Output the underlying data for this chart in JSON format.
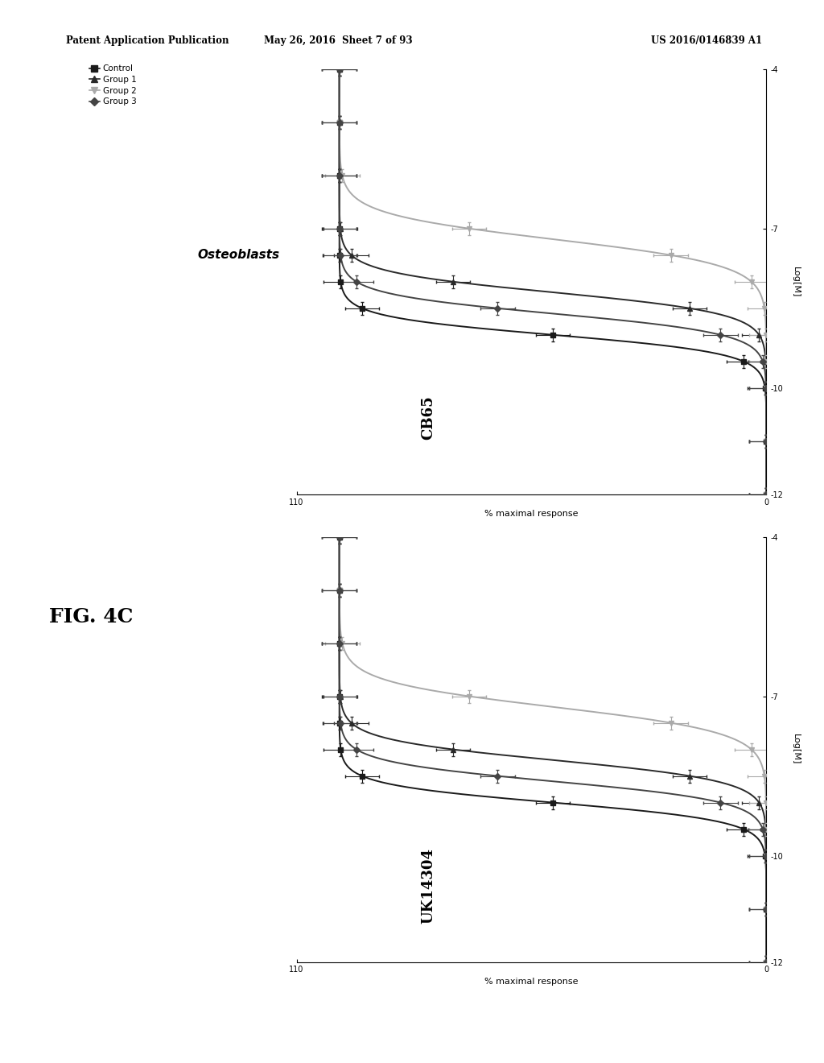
{
  "header_left": "Patent Application Publication",
  "header_center": "May 26, 2016  Sheet 7 of 93",
  "header_right": "US 2016/0146839 A1",
  "fig_label": "FIG. 4C",
  "cell_type": "Osteoblasts",
  "plot1_title": "CB65",
  "plot2_title": "UK14304",
  "xaxis_label": "Log[M]",
  "yaxis_label": "% maximal response",
  "log_min": -12,
  "log_max": -4,
  "pct_min": 0,
  "pct_max": 110,
  "log_ticks": [
    -12,
    -10,
    -7,
    -4
  ],
  "pct_ticks": [
    0,
    110
  ],
  "legend_labels": [
    "Control",
    "Group 1",
    "Group 2",
    "Group 3"
  ],
  "legend_markers": [
    "s",
    "^",
    "v",
    "D"
  ],
  "legend_colors": [
    "#1a1a1a",
    "#2a2a2a",
    "#aaaaaa",
    "#444444"
  ],
  "background_color": "#ffffff",
  "ec50_plot1": [
    -9.0,
    -8.2,
    -7.2,
    -8.6
  ],
  "ec50_plot2": [
    -9.0,
    -8.2,
    -7.2,
    -8.6
  ],
  "hillslopes": [
    2.5,
    2.2,
    1.8,
    2.3
  ]
}
